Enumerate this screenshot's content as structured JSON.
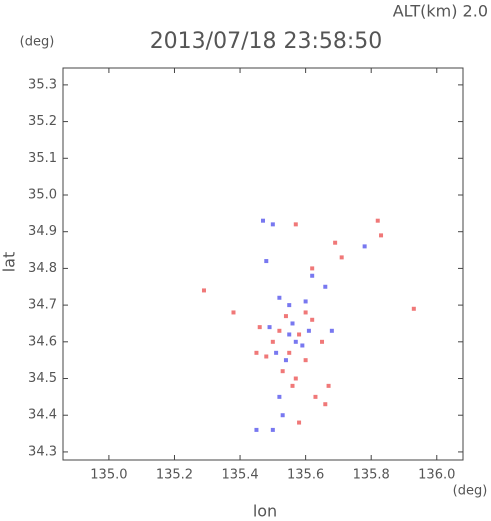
{
  "chart_data": {
    "type": "scatter",
    "title": "2013/07/18 23:58:50",
    "annotation": "ALT(km) 2.0",
    "y_unit": "(deg)",
    "x_unit": "(deg)",
    "xlabel": "lon",
    "ylabel": "lat",
    "xlim": [
      134.86,
      136.08
    ],
    "ylim": [
      34.278,
      35.346
    ],
    "xticks": [
      {
        "value": 135.0,
        "label": "135.0"
      },
      135.2,
      135.4,
      135.6,
      135.8,
      {
        "value": 136.0,
        "label": "136.0"
      }
    ],
    "yticks": [
      34.3,
      34.4,
      34.5,
      34.6,
      34.7,
      34.8,
      34.9,
      {
        "value": 35.0,
        "label": "35.0"
      },
      35.1,
      35.2,
      35.3
    ],
    "series": [
      {
        "color": "#f07878",
        "x": [
          135.29,
          135.38,
          135.93,
          135.82,
          135.83,
          135.69,
          135.71,
          135.62,
          135.57,
          135.46,
          135.5,
          135.55,
          135.58,
          135.6,
          135.53,
          135.56,
          135.62,
          135.65,
          135.48,
          135.58,
          135.63,
          135.67,
          135.66,
          135.54,
          135.45,
          135.6,
          135.52,
          135.57
        ],
        "y": [
          34.74,
          34.68,
          34.69,
          34.93,
          34.89,
          34.87,
          34.83,
          34.8,
          34.92,
          34.64,
          34.6,
          34.57,
          34.62,
          34.55,
          34.52,
          34.48,
          34.66,
          34.6,
          34.56,
          34.38,
          34.45,
          34.48,
          34.43,
          34.67,
          34.57,
          34.68,
          34.63,
          34.5
        ]
      },
      {
        "color": "#7878f0",
        "x": [
          135.47,
          135.5,
          135.78,
          135.52,
          135.49,
          135.55,
          135.59,
          135.51,
          135.54,
          135.61,
          135.56,
          135.45,
          135.5,
          135.53,
          135.6,
          135.62,
          135.68,
          135.66,
          135.52,
          135.57,
          135.55,
          135.48
        ],
        "y": [
          34.93,
          34.92,
          34.86,
          34.72,
          34.64,
          34.62,
          34.59,
          34.57,
          34.55,
          34.63,
          34.65,
          34.36,
          34.36,
          34.4,
          34.71,
          34.78,
          34.63,
          34.75,
          34.45,
          34.6,
          34.7,
          34.82
        ]
      }
    ]
  }
}
